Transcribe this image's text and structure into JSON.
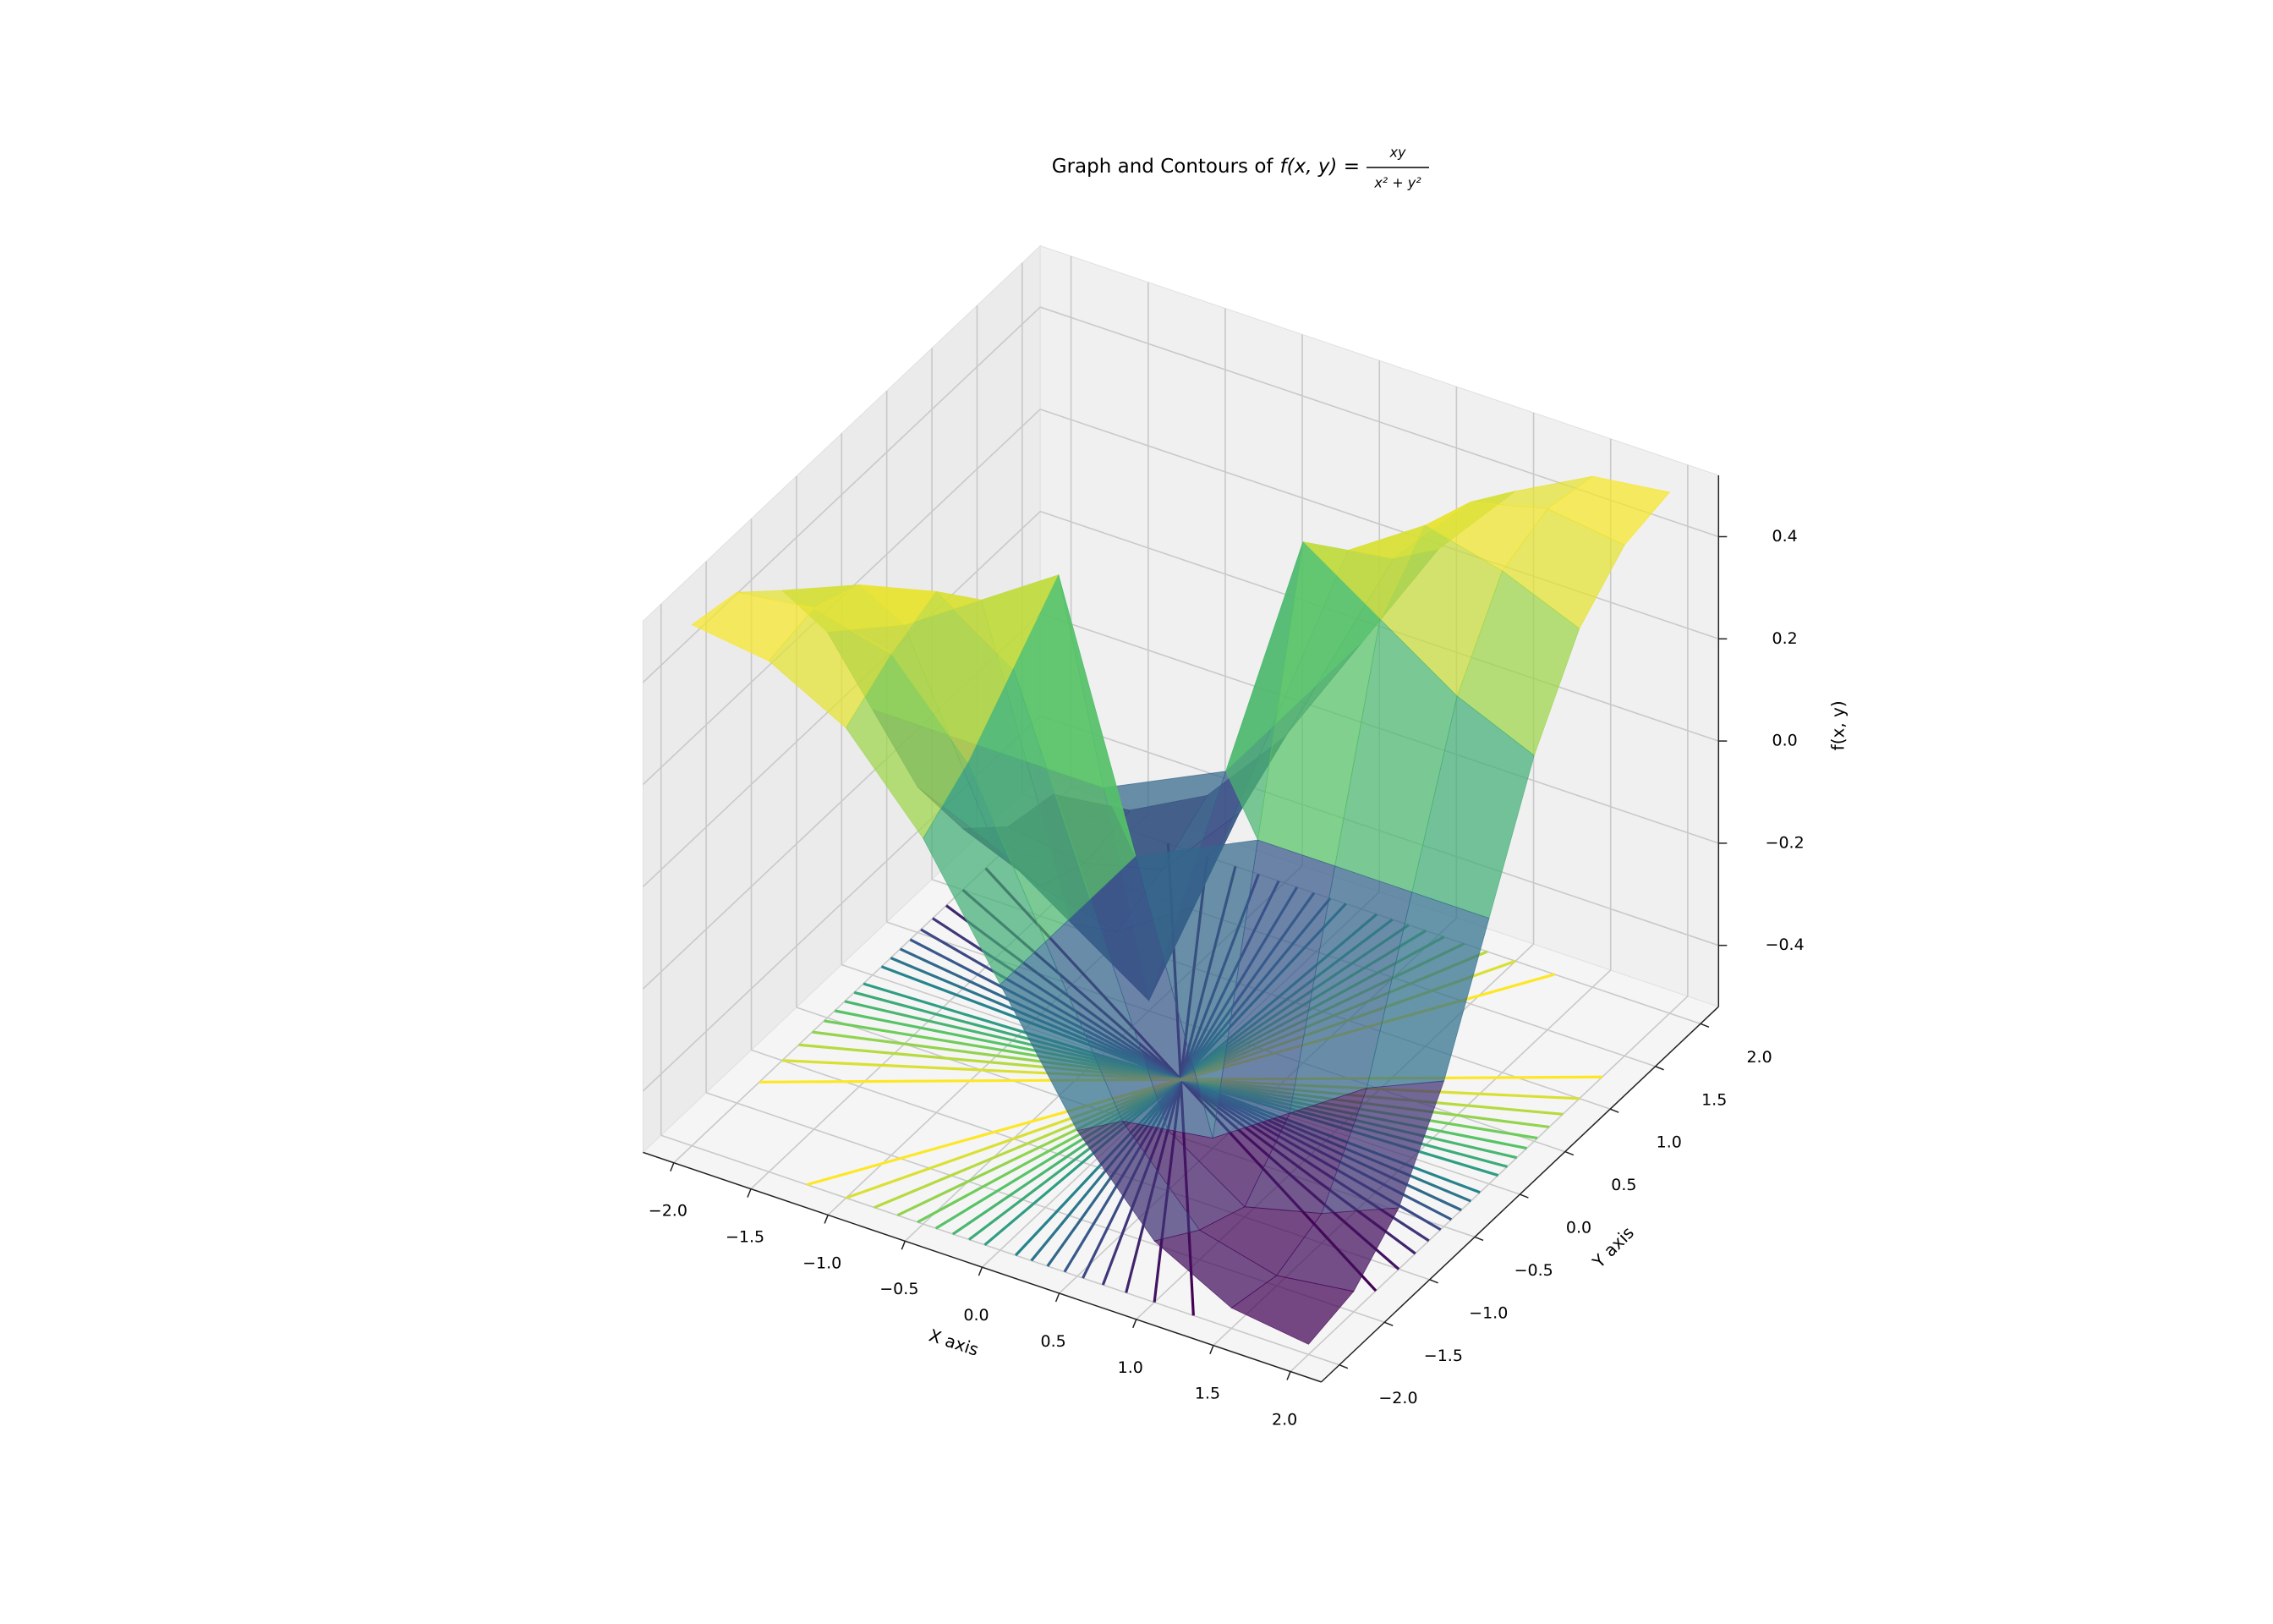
{
  "chart_data": {
    "type": "surface3d",
    "title": "Graph and Contours of",
    "title_formula": {
      "lhs": "f(x, y) =",
      "numerator": "xy",
      "denominator": "x² + y²"
    },
    "x_label": "X axis",
    "y_label": "Y axis",
    "z_label": "f(x, y)",
    "x": [
      -2,
      -1.5,
      -1,
      -0.5,
      0,
      0.5,
      1,
      1.5,
      2
    ],
    "y": [
      -2,
      -1.5,
      -1,
      -0.5,
      0,
      0.5,
      1,
      1.5,
      2
    ],
    "z": [
      [
        0.5,
        0.48,
        0.4,
        0.235,
        0,
        -0.235,
        -0.4,
        -0.48,
        -0.5
      ],
      [
        0.48,
        0.5,
        0.462,
        0.3,
        0,
        -0.3,
        -0.462,
        -0.5,
        -0.48
      ],
      [
        0.4,
        0.462,
        0.5,
        0.4,
        0,
        -0.4,
        -0.5,
        -0.462,
        -0.4
      ],
      [
        0.235,
        0.3,
        0.4,
        0.5,
        0,
        -0.5,
        -0.4,
        -0.3,
        -0.235
      ],
      [
        0,
        0,
        0,
        0,
        null,
        0,
        0,
        0,
        0
      ],
      [
        -0.235,
        -0.3,
        -0.4,
        -0.5,
        0,
        0.5,
        0.4,
        0.3,
        0.235
      ],
      [
        -0.4,
        -0.462,
        -0.5,
        -0.4,
        0,
        0.4,
        0.5,
        0.462,
        0.4
      ],
      [
        -0.48,
        -0.5,
        -0.462,
        -0.3,
        0,
        0.3,
        0.462,
        0.5,
        0.48
      ],
      [
        -0.5,
        -0.48,
        -0.4,
        -0.235,
        0,
        0.235,
        0.4,
        0.48,
        0.5
      ]
    ],
    "contour_levels": [
      -0.45,
      -0.4,
      -0.35,
      -0.3,
      -0.25,
      -0.2,
      -0.15,
      -0.1,
      -0.05,
      0.05,
      0.1,
      0.15,
      0.2,
      0.25,
      0.3,
      0.35,
      0.4,
      0.45
    ],
    "colormap": "viridis",
    "surface_alpha": 0.72,
    "xlim": [
      -2.2,
      2.2
    ],
    "ylim": [
      -2.2,
      2.2
    ],
    "zlim": [
      -0.52,
      0.52
    ],
    "xticks": [
      {
        "value": -2,
        "label": "−2.0"
      },
      {
        "value": -1.5,
        "label": "−1.5"
      },
      {
        "value": -1,
        "label": "−1.0"
      },
      {
        "value": -0.5,
        "label": "−0.5"
      },
      {
        "value": 0,
        "label": "0.0"
      },
      0.5,
      {
        "value": 1,
        "label": "1.0"
      },
      1.5,
      {
        "value": 2,
        "label": "2.0"
      }
    ],
    "yticks": [
      {
        "value": -2,
        "label": "−2.0"
      },
      {
        "value": -1.5,
        "label": "−1.5"
      },
      {
        "value": -1,
        "label": "−1.0"
      },
      {
        "value": -0.5,
        "label": "−0.5"
      },
      {
        "value": 0,
        "label": "0.0"
      },
      0.5,
      {
        "value": 1,
        "label": "1.0"
      },
      1.5,
      {
        "value": 2,
        "label": "2.0"
      }
    ],
    "zticks": [
      {
        "value": -0.4,
        "label": "−0.4"
      },
      {
        "value": -0.2,
        "label": "−0.2"
      },
      {
        "value": 0,
        "label": "0.0"
      },
      0.2,
      0.4
    ],
    "grid": true
  }
}
